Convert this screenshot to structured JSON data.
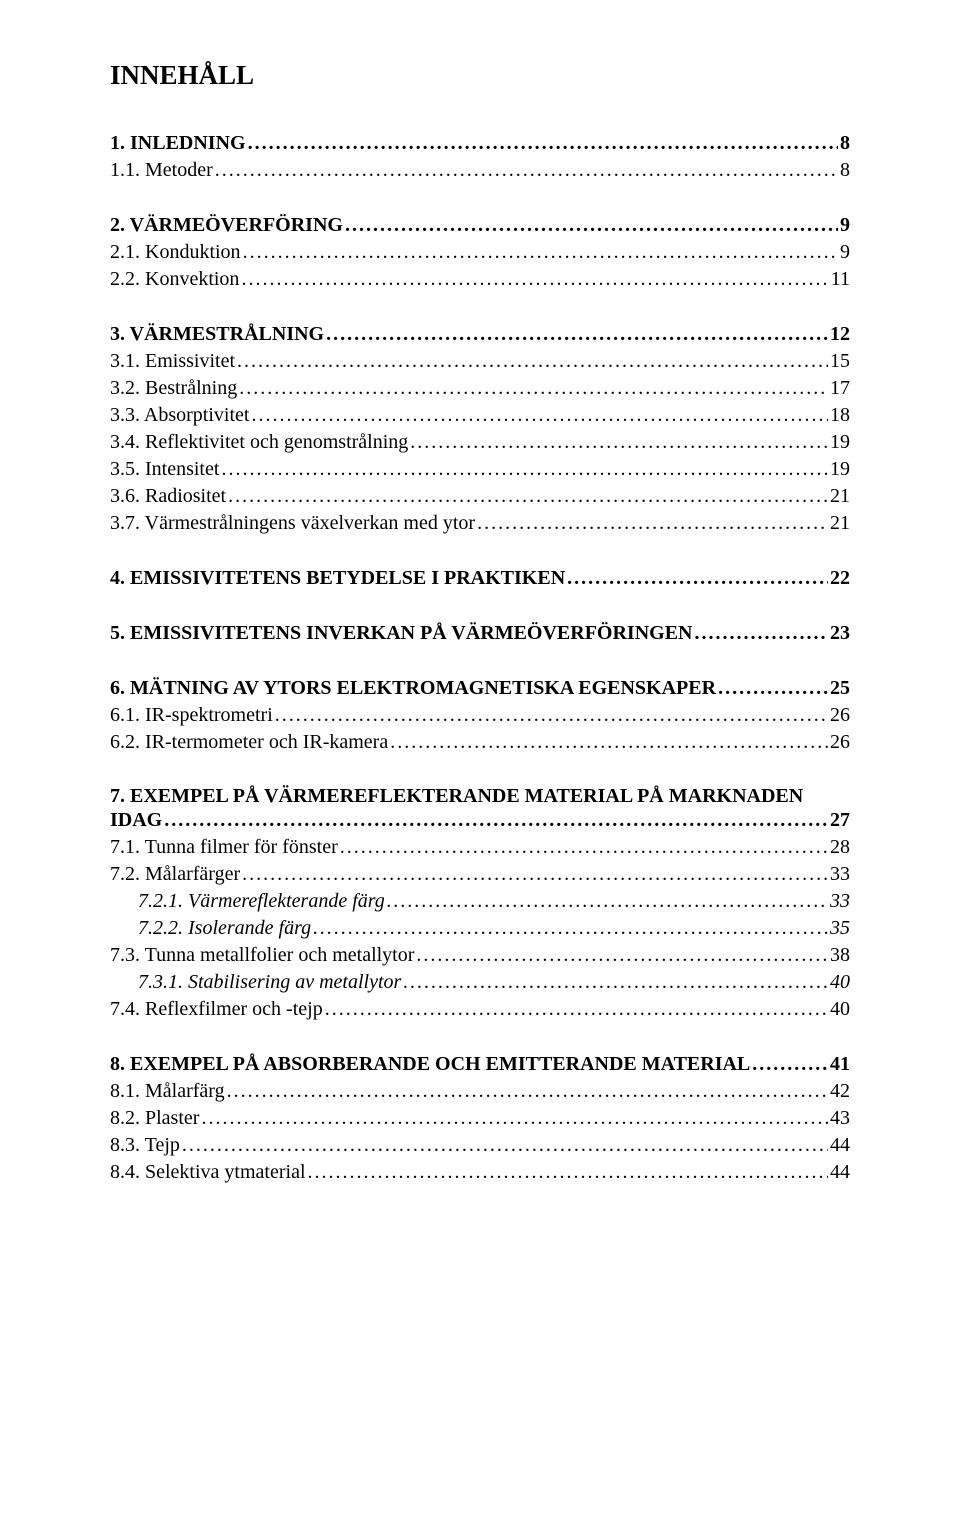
{
  "title": "INNEHÅLL",
  "toc": [
    {
      "level": 1,
      "num": "1.",
      "text": "INLEDNING",
      "page": "8"
    },
    {
      "level": 2,
      "num": "1.1.",
      "text": "Metoder",
      "page": "8"
    },
    {
      "level": 1,
      "num": "2.",
      "text": "VÄRMEÖVERFÖRING",
      "page": "9"
    },
    {
      "level": 2,
      "num": "2.1.",
      "text": "Konduktion",
      "page": "9"
    },
    {
      "level": 2,
      "num": "2.2.",
      "text": "Konvektion",
      "page": "11"
    },
    {
      "level": 1,
      "num": "3.",
      "text": "VÄRMESTRÅLNING",
      "page": "12"
    },
    {
      "level": 2,
      "num": "3.1.",
      "text": "Emissivitet",
      "page": "15"
    },
    {
      "level": 2,
      "num": "3.2.",
      "text": "Bestrålning",
      "page": "17"
    },
    {
      "level": 2,
      "num": "3.3.",
      "text": "Absorptivitet",
      "page": "18"
    },
    {
      "level": 2,
      "num": "3.4.",
      "text": "Reflektivitet och genomstrålning",
      "page": "19"
    },
    {
      "level": 2,
      "num": "3.5.",
      "text": "Intensitet",
      "page": "19"
    },
    {
      "level": 2,
      "num": "3.6.",
      "text": "Radiositet",
      "page": "21"
    },
    {
      "level": 2,
      "num": "3.7.",
      "text": "Värmestrålningens växelverkan med ytor",
      "page": "21"
    },
    {
      "level": 1,
      "num": "4.",
      "text": "EMISSIVITETENS BETYDELSE I PRAKTIKEN",
      "page": "22"
    },
    {
      "level": 1,
      "num": "5.",
      "text": "EMISSIVITETENS INVERKAN PÅ VÄRMEÖVERFÖRINGEN",
      "page": "23"
    },
    {
      "level": 1,
      "num": "6.",
      "text": "MÄTNING AV YTORS ELEKTROMAGNETISKA EGENSKAPER",
      "page": "25"
    },
    {
      "level": 2,
      "num": "6.1.",
      "text": "IR-spektrometri",
      "page": "26"
    },
    {
      "level": 2,
      "num": "6.2.",
      "text": "IR-termometer och IR-kamera",
      "page": "26"
    },
    {
      "level": 1,
      "num": "7.",
      "text": "EXEMPEL PÅ VÄRMEREFLEKTERANDE MATERIAL PÅ MARKNADEN IDAG",
      "page": "27",
      "wrap": true
    },
    {
      "level": 2,
      "num": "7.1.",
      "text": "Tunna filmer för fönster",
      "page": "28"
    },
    {
      "level": 2,
      "num": "7.2.",
      "text": "Målarfärger",
      "page": "33"
    },
    {
      "level": 3,
      "num": "7.2.1.",
      "text": "Värmereflekterande färg",
      "page": "33"
    },
    {
      "level": 3,
      "num": "7.2.2.",
      "text": "Isolerande färg",
      "page": "35"
    },
    {
      "level": 2,
      "num": "7.3.",
      "text": "Tunna metallfolier och metallytor",
      "page": "38"
    },
    {
      "level": 3,
      "num": "7.3.1.",
      "text": "Stabilisering av metallytor",
      "page": "40"
    },
    {
      "level": 2,
      "num": "7.4.",
      "text": "Reflexfilmer och -tejp",
      "page": "40"
    },
    {
      "level": 1,
      "num": "8.",
      "text": "EXEMPEL PÅ ABSORBERANDE OCH EMITTERANDE MATERIAL",
      "page": "41"
    },
    {
      "level": 2,
      "num": "8.1.",
      "text": "Målarfärg",
      "page": "42"
    },
    {
      "level": 2,
      "num": "8.2.",
      "text": "Plaster",
      "page": "43"
    },
    {
      "level": 2,
      "num": "8.3.",
      "text": "Tejp",
      "page": "44"
    },
    {
      "level": 2,
      "num": "8.4.",
      "text": "Selektiva ytmaterial",
      "page": "44"
    }
  ],
  "leader_char": "."
}
